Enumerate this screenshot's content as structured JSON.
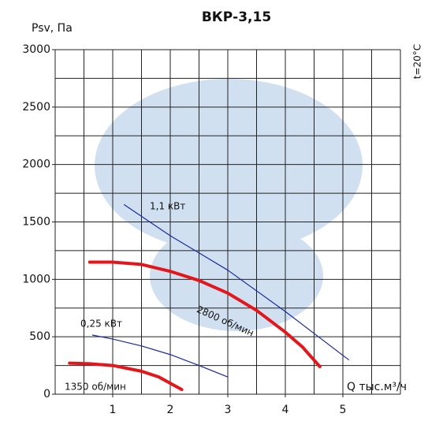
{
  "chart_data": {
    "type": "line",
    "title": "ВКР-3,15",
    "y_label": "Psv, Па",
    "x_label": "Q тыс.м³/ч",
    "note": "t=20°C",
    "xlim": [
      0,
      6
    ],
    "ylim": [
      0,
      3000
    ],
    "xticks": [
      1,
      2,
      3,
      4,
      5
    ],
    "yticks": [
      0,
      500,
      1000,
      1500,
      2000,
      2500,
      3000
    ],
    "x_grid_step": 0.5,
    "y_grid_step": 250,
    "grid": true,
    "series": [
      {
        "name": "2800 об/мин",
        "color": "#e3161b",
        "width": 4,
        "x": [
          0.6,
          1.0,
          1.5,
          2.0,
          2.5,
          3.0,
          3.5,
          4.0,
          4.3,
          4.6
        ],
        "values": [
          1150,
          1150,
          1130,
          1070,
          990,
          880,
          730,
          540,
          410,
          240
        ]
      },
      {
        "name": "1350 об/мин",
        "color": "#e3161b",
        "width": 4,
        "x": [
          0.25,
          0.6,
          1.0,
          1.5,
          1.8,
          2.0,
          2.2
        ],
        "values": [
          270,
          265,
          250,
          200,
          150,
          95,
          40
        ]
      },
      {
        "name": "1,1 кВт",
        "color": "#1a2a9c",
        "width": 1.2,
        "x": [
          1.2,
          2.0,
          3.0,
          4.0,
          5.1
        ],
        "values": [
          1650,
          1380,
          1080,
          720,
          300
        ]
      },
      {
        "name": "0,25 кВт",
        "color": "#1a2a9c",
        "width": 1.2,
        "x": [
          0.65,
          1.0,
          1.5,
          2.0,
          2.5,
          3.0
        ],
        "values": [
          515,
          480,
          420,
          345,
          250,
          150
        ]
      }
    ]
  }
}
